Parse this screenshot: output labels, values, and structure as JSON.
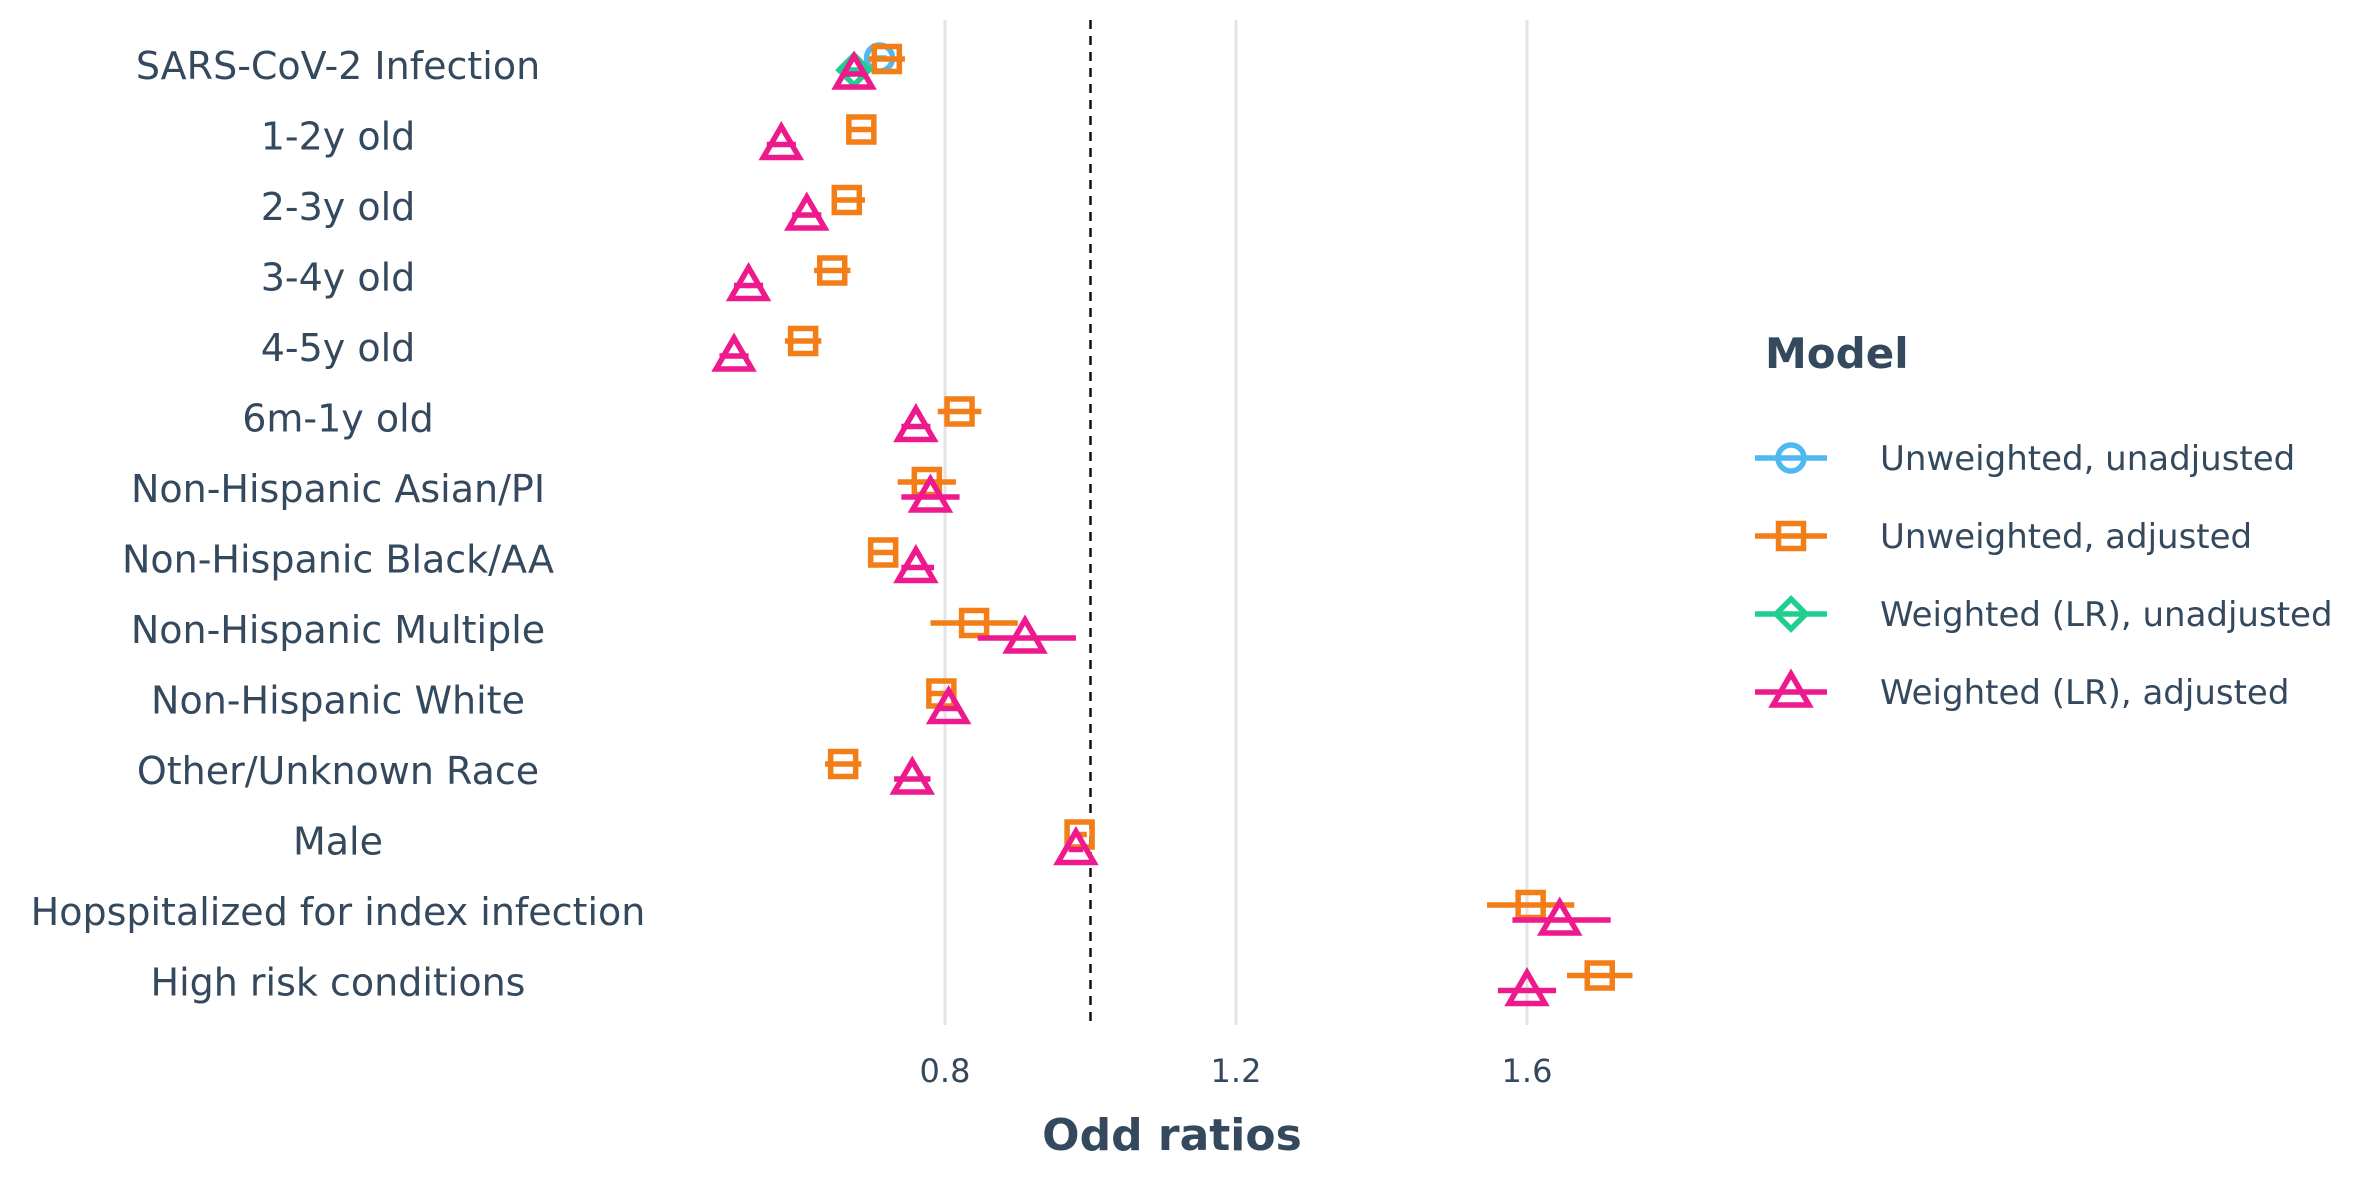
{
  "chart_data": {
    "type": "forest",
    "xlabel": "Odd ratios",
    "xlim": [
      0.38,
      1.95
    ],
    "xticks": [
      0.8,
      1.2,
      1.6
    ],
    "reference_line": 1.0,
    "grid": "vertical-major",
    "legend": {
      "title": "Model",
      "placement": "right"
    },
    "categories": [
      "SARS-CoV-2 Infection",
      "1-2y old",
      "2-3y old",
      "3-4y old",
      "4-5y old",
      "6m-1y old",
      "Non-Hispanic Asian/PI",
      "Non-Hispanic Black/AA",
      "Non-Hispanic Multiple",
      "Non-Hispanic White",
      "Other/Unknown Race",
      "Male",
      "Hopspitalized for index infection",
      "High risk conditions"
    ],
    "series": [
      {
        "name": "Unweighted, unadjusted",
        "color": "#4fb8ee",
        "marker": "circle",
        "points": [
          {
            "category": "SARS-CoV-2 Infection",
            "or": 0.71,
            "lo": 0.7,
            "hi": 0.72
          }
        ]
      },
      {
        "name": "Unweighted, adjusted",
        "color": "#f37e17",
        "marker": "square",
        "points": [
          {
            "category": "SARS-CoV-2 Infection",
            "or": 0.72,
            "lo": 0.695,
            "hi": 0.745
          },
          {
            "category": "1-2y old",
            "or": 0.685,
            "lo": 0.665,
            "hi": 0.705
          },
          {
            "category": "2-3y old",
            "or": 0.665,
            "lo": 0.645,
            "hi": 0.69
          },
          {
            "category": "3-4y old",
            "or": 0.645,
            "lo": 0.62,
            "hi": 0.67
          },
          {
            "category": "4-5y old",
            "or": 0.605,
            "lo": 0.58,
            "hi": 0.63
          },
          {
            "category": "6m-1y old",
            "or": 0.82,
            "lo": 0.79,
            "hi": 0.85
          },
          {
            "category": "Non-Hispanic Asian/PI",
            "or": 0.775,
            "lo": 0.735,
            "hi": 0.815
          },
          {
            "category": "Non-Hispanic Black/AA",
            "or": 0.715,
            "lo": 0.695,
            "hi": 0.735
          },
          {
            "category": "Non-Hispanic Multiple",
            "or": 0.84,
            "lo": 0.78,
            "hi": 0.9
          },
          {
            "category": "Non-Hispanic White",
            "or": 0.795,
            "lo": 0.78,
            "hi": 0.81
          },
          {
            "category": "Other/Unknown Race",
            "or": 0.66,
            "lo": 0.635,
            "hi": 0.685
          },
          {
            "category": "Male",
            "or": 0.985,
            "lo": 0.975,
            "hi": 0.995
          },
          {
            "category": "Hopspitalized for index infection",
            "or": 1.605,
            "lo": 1.545,
            "hi": 1.665
          },
          {
            "category": "High risk conditions",
            "or": 1.7,
            "lo": 1.655,
            "hi": 1.745
          }
        ]
      },
      {
        "name": "Weighted (LR), unadjusted",
        "color": "#1fcf8f",
        "marker": "diamond",
        "points": [
          {
            "category": "SARS-CoV-2 Infection",
            "or": 0.675,
            "lo": 0.66,
            "hi": 0.69
          }
        ]
      },
      {
        "name": "Weighted (LR), adjusted",
        "color": "#ee1a8d",
        "marker": "triangle",
        "points": [
          {
            "category": "SARS-CoV-2 Infection",
            "or": 0.675,
            "lo": 0.66,
            "hi": 0.69
          },
          {
            "category": "1-2y old",
            "or": 0.575,
            "lo": 0.555,
            "hi": 0.595
          },
          {
            "category": "2-3y old",
            "or": 0.61,
            "lo": 0.59,
            "hi": 0.63
          },
          {
            "category": "3-4y old",
            "or": 0.53,
            "lo": 0.51,
            "hi": 0.55
          },
          {
            "category": "4-5y old",
            "or": 0.51,
            "lo": 0.49,
            "hi": 0.53
          },
          {
            "category": "6m-1y old",
            "or": 0.76,
            "lo": 0.74,
            "hi": 0.78
          },
          {
            "category": "Non-Hispanic Asian/PI",
            "or": 0.78,
            "lo": 0.74,
            "hi": 0.82
          },
          {
            "category": "Non-Hispanic Black/AA",
            "or": 0.76,
            "lo": 0.74,
            "hi": 0.785
          },
          {
            "category": "Non-Hispanic Multiple",
            "or": 0.91,
            "lo": 0.845,
            "hi": 0.98
          },
          {
            "category": "Non-Hispanic White",
            "or": 0.805,
            "lo": 0.79,
            "hi": 0.82
          },
          {
            "category": "Other/Unknown Race",
            "or": 0.755,
            "lo": 0.73,
            "hi": 0.78
          },
          {
            "category": "Male",
            "or": 0.98,
            "lo": 0.97,
            "hi": 0.99
          },
          {
            "category": "Hopspitalized for index infection",
            "or": 1.645,
            "lo": 1.58,
            "hi": 1.715
          },
          {
            "category": "High risk conditions",
            "or": 1.6,
            "lo": 1.56,
            "hi": 1.64
          }
        ]
      }
    ]
  }
}
